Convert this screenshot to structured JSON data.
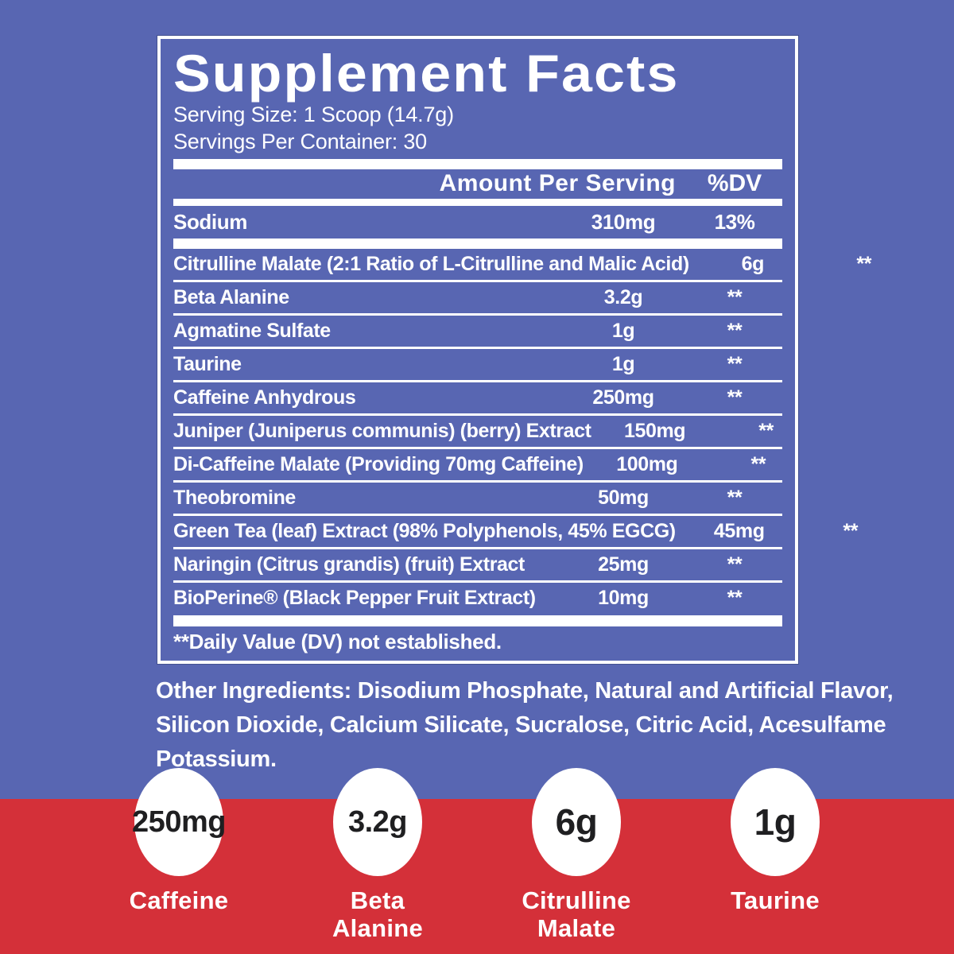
{
  "colors": {
    "background_blue": "#5866b2",
    "band_red": "#d43039",
    "panel_text": "#ffffff",
    "circle_text": "#1f1f21"
  },
  "panel": {
    "title": "Supplement Facts",
    "serving_size": "Serving Size: 1 Scoop (14.7g)",
    "servings_per_container": "Servings Per Container: 30",
    "header": {
      "amount": "Amount Per Serving",
      "dv": "%DV"
    },
    "sodium_row": {
      "name": "Sodium",
      "amount": "310mg",
      "dv": "13%"
    },
    "rows": [
      {
        "name": "Citrulline Malate (2:1 Ratio of L-Citrulline and Malic Acid)",
        "amount": "6g",
        "dv": "**"
      },
      {
        "name": "Beta Alanine",
        "amount": "3.2g",
        "dv": "**"
      },
      {
        "name": "Agmatine Sulfate",
        "amount": "1g",
        "dv": "**"
      },
      {
        "name": "Taurine",
        "amount": "1g",
        "dv": "**"
      },
      {
        "name": "Caffeine Anhydrous",
        "amount": "250mg",
        "dv": "**"
      },
      {
        "name": "Juniper (Juniperus communis) (berry) Extract",
        "amount": "150mg",
        "dv": "**"
      },
      {
        "name": "Di-Caffeine Malate (Providing 70mg Caffeine)",
        "amount": "100mg",
        "dv": "**"
      },
      {
        "name": "Theobromine",
        "amount": "50mg",
        "dv": "**"
      },
      {
        "name": "Green Tea (leaf) Extract (98% Polyphenols, 45% EGCG)",
        "amount": "45mg",
        "dv": "**"
      },
      {
        "name": "Naringin (Citrus grandis) (fruit) Extract",
        "amount": "25mg",
        "dv": "**"
      },
      {
        "name": "BioPerine® (Black Pepper Fruit Extract)",
        "amount": "10mg",
        "dv": "**"
      }
    ],
    "footnote": "**Daily Value (DV) not established."
  },
  "other_ingredients": {
    "line1": "Other Ingredients: Disodium Phosphate, Natural and Artificial Flavor,",
    "line2": "Silicon Dioxide, Calcium Silicate, Sucralose, Citric Acid, Acesulfame Potassium."
  },
  "highlights": [
    {
      "amount": "250mg",
      "label": "Caffeine"
    },
    {
      "amount": "3.2g",
      "label": "Beta\nAlanine"
    },
    {
      "amount": "6g",
      "label": "Citrulline\nMalate"
    },
    {
      "amount": "1g",
      "label": "Taurine"
    }
  ]
}
